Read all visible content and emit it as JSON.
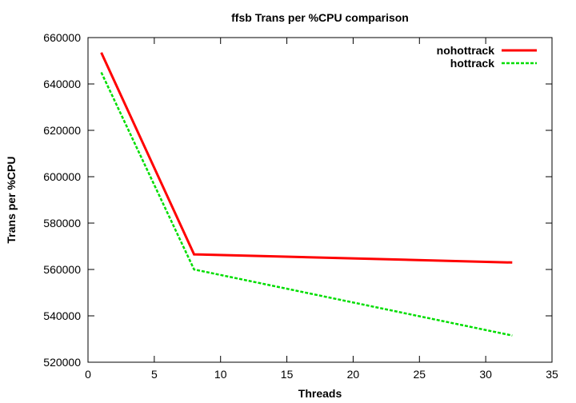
{
  "chart_data": {
    "type": "line",
    "title": "ffsb Trans per %CPU comparison",
    "xlabel": "Threads",
    "ylabel": "Trans per %CPU",
    "xlim": [
      0,
      35
    ],
    "ylim": [
      520000,
      660000
    ],
    "xticks": [
      0,
      5,
      10,
      15,
      20,
      25,
      30,
      35
    ],
    "yticks": [
      520000,
      540000,
      560000,
      580000,
      600000,
      620000,
      640000,
      660000
    ],
    "grid": false,
    "legend": "top-right",
    "series": [
      {
        "name": "nohottrack",
        "color": "#ff0000",
        "dash": "solid",
        "x": [
          1,
          8,
          32
        ],
        "y": [
          653500,
          566500,
          563000
        ]
      },
      {
        "name": "hottrack",
        "color": "#00dd00",
        "dash": "dashed",
        "x": [
          1,
          8,
          32
        ],
        "y": [
          645000,
          560000,
          531500
        ]
      }
    ]
  }
}
